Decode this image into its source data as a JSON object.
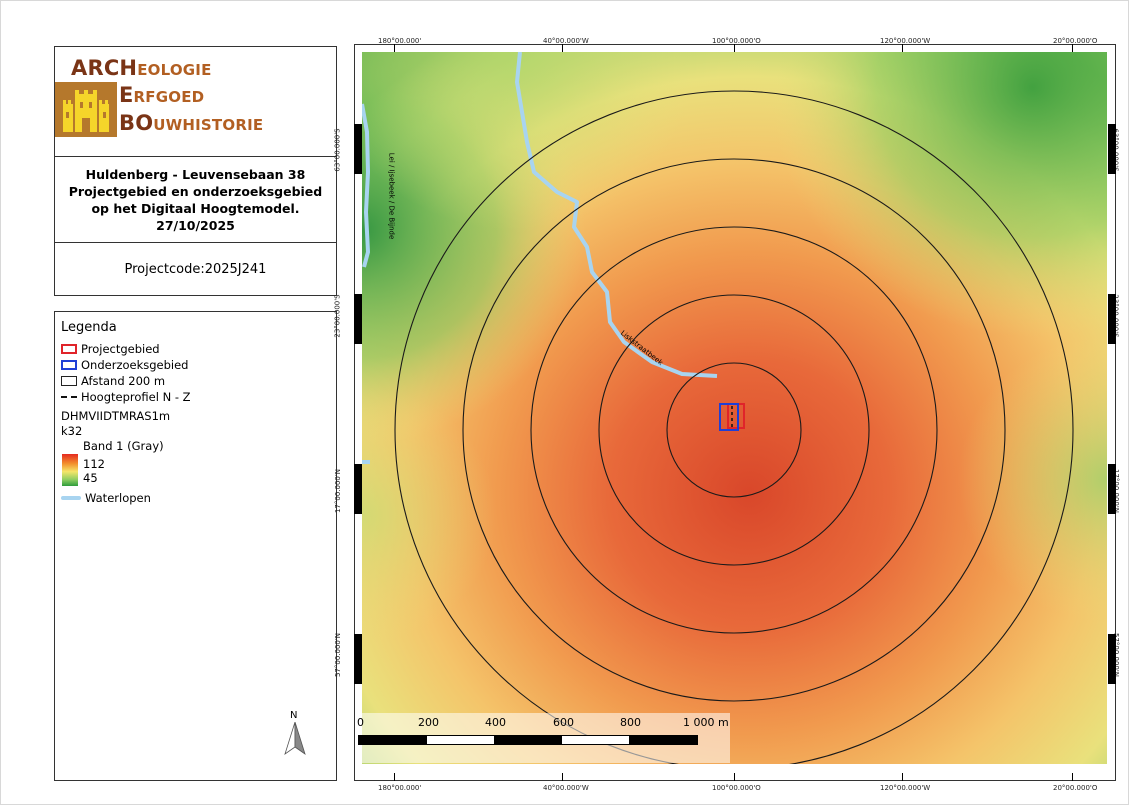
{
  "logo": {
    "line1_big": "ARCH",
    "line1_rest": "EOLOGIE",
    "line2_big": "E",
    "line2_rest": "RFGOED",
    "line3_big": "BO",
    "line3_rest": "UWHISTORIE"
  },
  "title": {
    "line1": "Huldenberg - Leuvensebaan 38",
    "line2": "Projectgebied en onderzoeksgebied",
    "line3": "op het Digitaal Hoogtemodel.",
    "date": "27/10/2025"
  },
  "project_code": "Projectcode:2025J241",
  "legend": {
    "title": "Legenda",
    "items": [
      {
        "label": "Projectgebied",
        "color": "#e0242a",
        "symbol": "box"
      },
      {
        "label": "Onderzoeksgebied",
        "color": "#1f3fd6",
        "symbol": "box"
      },
      {
        "label": "Afstand 200 m",
        "color": "#222222",
        "symbol": "box"
      },
      {
        "label": "Hoogteprofiel N - Z",
        "color": "#111111",
        "symbol": "dash"
      }
    ],
    "raster_name": "DHMVIIDTMRAS1m",
    "raster_sub": "k32",
    "band": "Band 1 (Gray)",
    "max": "112",
    "min": "45",
    "waterlopen": "Waterlopen",
    "waterlopen_color": "#a8d4f0"
  },
  "map": {
    "top_ticks": [
      "180°00.000'",
      "40°00.000'W",
      "100°00.000'O",
      "120°00.000'W",
      "20°00.000'O"
    ],
    "bottom_ticks": [
      "180°00.000'",
      "40°00.000'W",
      "100°00.000'O",
      "120°00.000'W",
      "20°00.000'O"
    ],
    "left_ticks": [
      "63°00.000'S",
      "23°00.000'S",
      "17°00.000'N",
      "57°00.000'N"
    ],
    "right_ticks": [
      "63°00.000'S",
      "23°00.000'S",
      "17°00.000'N",
      "57°00.000'N"
    ],
    "waterway_labels": [
      "Lei / Ijsebeek / De Bijnde",
      "Liskstraatbeek"
    ],
    "scale_labels": [
      "0",
      "200",
      "400",
      "600",
      "800",
      "1 000 m"
    ],
    "north_label": "N",
    "distance_rings": 5
  }
}
